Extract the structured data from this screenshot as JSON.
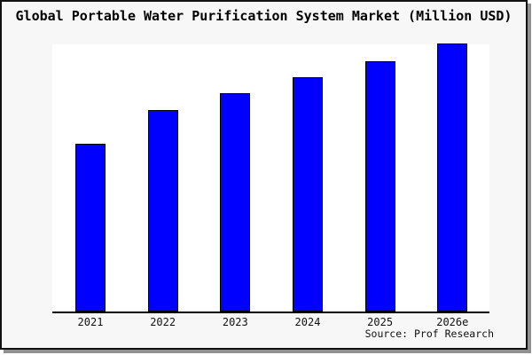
{
  "title": "Global Portable Water Purification System Market (Million USD)",
  "source": "Source: Prof Research",
  "colors": {
    "bar_fill": "#0000ff",
    "bar_border": "#000000",
    "plot_background": "#ffffff",
    "canvas_background": "#f7f7f7",
    "frame_border": "#111111",
    "shadow": "#909090"
  },
  "chart_data": {
    "type": "bar",
    "title": "Global Portable Water Purification System Market (Million USD)",
    "categories": [
      "2021",
      "2022",
      "2023",
      "2024",
      "2025",
      "2026e"
    ],
    "values": [
      62.6,
      75.2,
      81.5,
      87.4,
      93.4,
      100
    ],
    "value_note": "no numeric y-axis shown; values are relative bar heights as % of tallest (2026e) bar",
    "xlabel": "",
    "ylabel": "",
    "legend": "none",
    "grid": false,
    "bar_color": "#0000ff",
    "source": "Source: Prof Research"
  }
}
